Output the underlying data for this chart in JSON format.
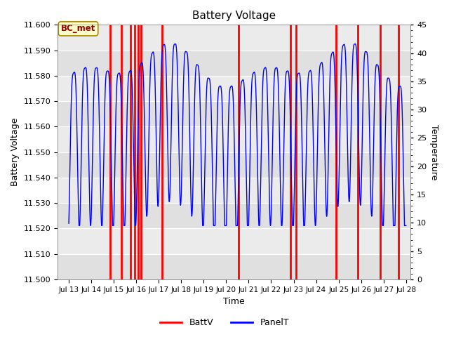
{
  "title": "Battery Voltage",
  "xlabel": "Time",
  "ylabel_left": "Battery Voltage",
  "ylabel_right": "Temperature",
  "ylim_left": [
    11.5,
    11.6
  ],
  "ylim_right": [
    0,
    45
  ],
  "yticks_left": [
    11.5,
    11.51,
    11.52,
    11.53,
    11.54,
    11.55,
    11.56,
    11.57,
    11.58,
    11.59,
    11.6
  ],
  "yticks_right": [
    0,
    5,
    10,
    15,
    20,
    25,
    30,
    35,
    40,
    45
  ],
  "xlim": [
    12.5,
    28.2
  ],
  "xtick_labels": [
    "Jul 13",
    "Jul 14",
    "Jul 15",
    "Jul 16",
    "Jul 17",
    "Jul 18",
    "Jul 19",
    "Jul 20",
    "Jul 21",
    "Jul 22",
    "Jul 23",
    "Jul 24",
    "Jul 25",
    "Jul 26",
    "Jul 27",
    "Jul 28"
  ],
  "xtick_positions": [
    13,
    14,
    15,
    16,
    17,
    18,
    19,
    20,
    21,
    22,
    23,
    24,
    25,
    26,
    27,
    28
  ],
  "bg_color_light": "#e8e8e8",
  "bg_color_dark": "#d0d0d0",
  "grid_color": "#ffffff",
  "annotation_text": "BC_met",
  "red_line_color": "#ff0000",
  "blue_line_color": "#0000ff",
  "red_vlines": [
    14.85,
    15.35,
    15.75,
    15.92,
    16.08,
    16.22,
    17.15,
    20.55,
    22.85,
    23.1,
    24.9,
    25.85,
    26.85,
    27.65
  ],
  "legend_labels": [
    "BattV",
    "PanelT"
  ],
  "legend_colors": [
    "#ff0000",
    "#0000ff"
  ],
  "figsize": [
    6.4,
    4.8
  ],
  "dpi": 100
}
